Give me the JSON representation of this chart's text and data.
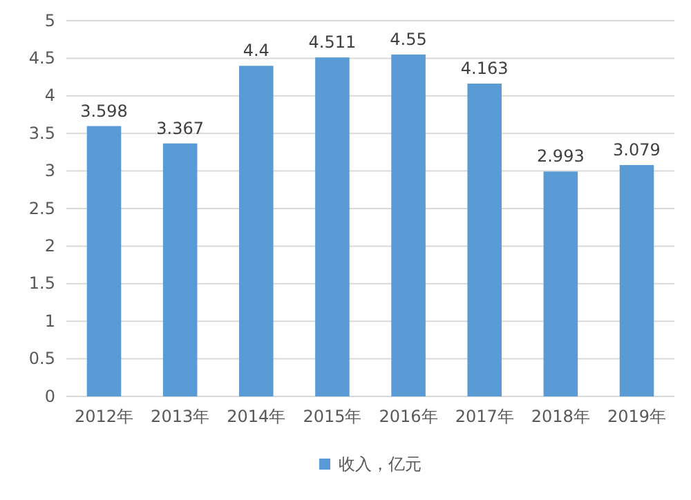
{
  "chart_data": {
    "type": "bar",
    "categories": [
      "2012年",
      "2013年",
      "2014年",
      "2015年",
      "2016年",
      "2017年",
      "2018年",
      "2019年"
    ],
    "series": [
      {
        "name": "收入，亿元",
        "color": "#5b9bd5",
        "values": [
          3.598,
          3.367,
          4.4,
          4.511,
          4.55,
          4.163,
          2.993,
          3.079
        ]
      }
    ],
    "data_labels": true,
    "ylim": [
      0,
      5
    ],
    "yticks": [
      0,
      0.5,
      1,
      1.5,
      2,
      2.5,
      3,
      3.5,
      4,
      4.5,
      5
    ],
    "grid": "y",
    "legend": "bottom"
  }
}
